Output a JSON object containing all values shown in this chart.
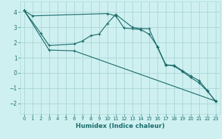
{
  "xlabel": "Humidex (Indice chaleur)",
  "bg_color": "#cff0f0",
  "grid_color": "#acd8d8",
  "line_color": "#1a6b6b",
  "xlim": [
    -0.5,
    23.5
  ],
  "ylim": [
    -2.7,
    4.7
  ],
  "yticks": [
    -2,
    -1,
    0,
    1,
    2,
    3,
    4
  ],
  "xticks": [
    0,
    1,
    2,
    3,
    4,
    5,
    6,
    7,
    8,
    9,
    10,
    11,
    12,
    13,
    14,
    15,
    16,
    17,
    18,
    19,
    20,
    21,
    22,
    23
  ],
  "series1_x": [
    0,
    1,
    10,
    11,
    12,
    13,
    14,
    15,
    16,
    17,
    18,
    19,
    20,
    21,
    22,
    23
  ],
  "series1_y": [
    4.1,
    3.75,
    3.9,
    3.75,
    2.95,
    2.9,
    2.85,
    2.55,
    1.75,
    0.55,
    0.45,
    0.1,
    -0.3,
    -0.65,
    -1.2,
    -1.85
  ],
  "series2_x": [
    0,
    2,
    3,
    6,
    7,
    8,
    9,
    10,
    11,
    13,
    14,
    15,
    16,
    17,
    18,
    19,
    20,
    21,
    22,
    23
  ],
  "series2_y": [
    4.1,
    2.6,
    1.8,
    1.9,
    2.1,
    2.45,
    2.55,
    3.25,
    3.85,
    3.0,
    2.9,
    2.9,
    1.7,
    0.5,
    0.5,
    0.15,
    -0.2,
    -0.5,
    -1.15,
    -1.9
  ],
  "series3_x": [
    0,
    3,
    6,
    23
  ],
  "series3_y": [
    4.1,
    1.5,
    1.45,
    -1.85
  ]
}
